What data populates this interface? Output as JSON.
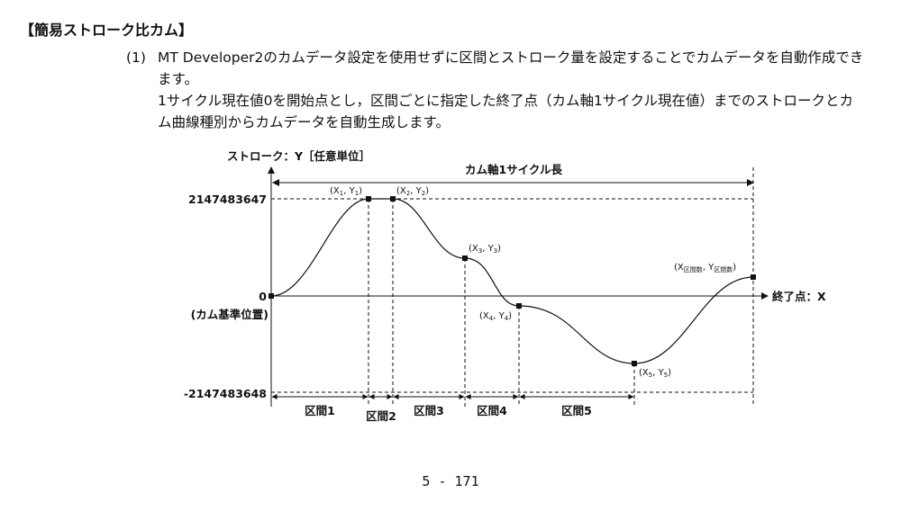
{
  "page": {
    "heading": "【簡易ストローク比カム】",
    "item_number": "(1)",
    "paragraph1": "MT Developer2のカムデータ設定を使用せずに区間とストローク量を設定することでカムデータを自動作成できます。",
    "paragraph2": "1サイクル現在値0を開始点とし，区間ごとに指定した終了点（カム軸1サイクル現在値）までのストロークとカム曲線種別からカムデータを自動生成します。",
    "page_number": "5 - 171"
  },
  "diagram": {
    "y_axis_label": "ストローク：Y［任意単位］",
    "x_axis_label": "終了点：X",
    "cycle_label": "カム軸1サイクル長",
    "y_max_label": "2147483647",
    "y_zero_label": "0",
    "y_zero_sub": "(カム基準位置)",
    "y_min_label": "-2147483648",
    "points": [
      {
        "x": "(X",
        "xs": "1",
        "m": ", Y",
        "ys": "1",
        "e": ")"
      },
      {
        "x": "(X",
        "xs": "2",
        "m": ", Y",
        "ys": "2",
        "e": ")"
      },
      {
        "x": "(X",
        "xs": "3",
        "m": ", Y",
        "ys": "3",
        "e": ")"
      },
      {
        "x": "(X",
        "xs": "4",
        "m": ", Y",
        "ys": "4",
        "e": ")"
      },
      {
        "x": "(X",
        "xs": "5",
        "m": ", Y",
        "ys": "5",
        "e": ")"
      },
      {
        "x": "(X",
        "xs": "区間数",
        "m": ", Y",
        "ys": "区間数",
        "e": ")"
      }
    ],
    "sections": [
      "区間1",
      "区間2",
      "区間3",
      "区間4",
      "区間5"
    ]
  }
}
